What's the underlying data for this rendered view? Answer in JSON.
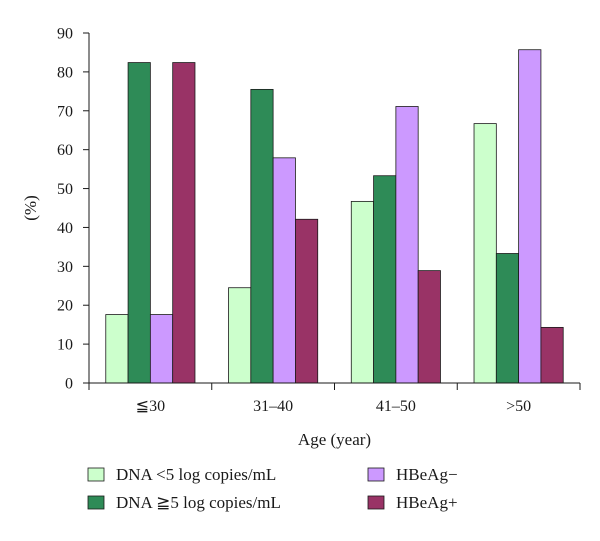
{
  "chart_data": {
    "type": "bar",
    "title": "",
    "xlabel": "Age (year)",
    "ylabel": "(%)",
    "categories": [
      "≦30",
      "31–40",
      "41–50",
      ">50"
    ],
    "ylim": [
      0,
      90
    ],
    "yticks": [
      0,
      10,
      20,
      30,
      40,
      50,
      60,
      70,
      80,
      90
    ],
    "grid": false,
    "legend_position": "bottom",
    "series": [
      {
        "name": "DNA <5 log copies/mL",
        "color": "#ccffcc",
        "values": [
          17.6,
          24.5,
          46.7,
          66.7
        ]
      },
      {
        "name": "DNA ≧5 log copies/mL",
        "color": "#2e8b57",
        "values": [
          82.4,
          75.5,
          53.3,
          33.3
        ]
      },
      {
        "name": "HBeAg−",
        "color": "#cc99ff",
        "values": [
          17.6,
          57.9,
          71.1,
          85.7
        ]
      },
      {
        "name": "HBeAg+",
        "color": "#993366",
        "values": [
          82.4,
          42.1,
          28.9,
          14.3
        ]
      }
    ]
  }
}
